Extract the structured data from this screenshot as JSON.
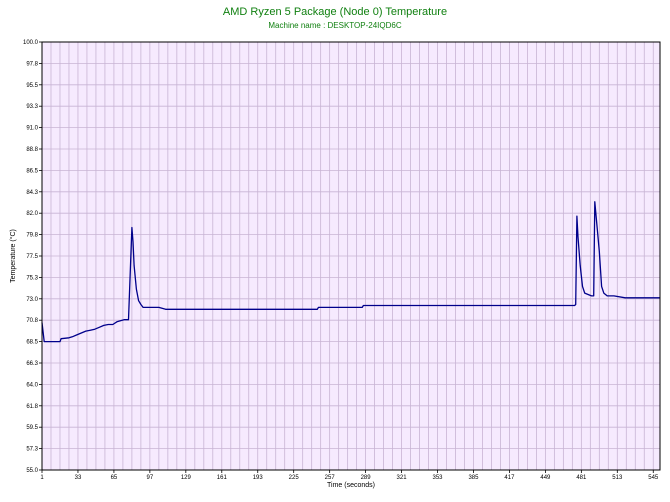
{
  "chart_data": {
    "type": "line",
    "title": "AMD Ryzen 5 Package (Node 0) Temperature",
    "subtitle": "Machine name : DESKTOP-24IQD6C",
    "xlabel": "Time (seconds)",
    "ylabel": "Temperature (°C)",
    "xlim": [
      1,
      551
    ],
    "ylim": [
      55.0,
      100.0
    ],
    "x_ticks": [
      1,
      33,
      65,
      97,
      129,
      161,
      193,
      225,
      257,
      289,
      321,
      353,
      385,
      417,
      449,
      481,
      513,
      545
    ],
    "y_ticks": [
      "55.0",
      "57.3",
      "59.5",
      "61.8",
      "64.0",
      "66.3",
      "68.5",
      "70.8",
      "73.0",
      "75.3",
      "77.5",
      "79.8",
      "82.0",
      "84.3",
      "86.5",
      "88.8",
      "91.0",
      "93.3",
      "95.5",
      "97.8",
      "100.0"
    ],
    "grid": true,
    "colors": {
      "background": "#f6eafe",
      "grid": "#c8b4d4",
      "line": "#00008b",
      "title": "#108010"
    },
    "series": [
      {
        "x": [
          1,
          2,
          3,
          5,
          17,
          18,
          25,
          28,
          32,
          36,
          40,
          44,
          48,
          52,
          56,
          60,
          64,
          68,
          74,
          78,
          81,
          82,
          83,
          85,
          87,
          89,
          91,
          95,
          105,
          111,
          200,
          246,
          247,
          286,
          287,
          400,
          470,
          475,
          476,
          477,
          478,
          480,
          482,
          484,
          490,
          491,
          492,
          493,
          494,
          497,
          499,
          501,
          504,
          510,
          520,
          551
        ],
        "y": [
          70.5,
          69.5,
          68.5,
          68.5,
          68.5,
          68.8,
          68.9,
          69.0,
          69.2,
          69.4,
          69.6,
          69.7,
          69.8,
          70.0,
          70.2,
          70.3,
          70.3,
          70.6,
          70.8,
          70.8,
          80.5,
          79.0,
          76.5,
          74.0,
          72.8,
          72.4,
          72.1,
          72.1,
          72.1,
          71.9,
          71.9,
          71.9,
          72.1,
          72.1,
          72.3,
          72.3,
          72.3,
          72.3,
          72.4,
          81.7,
          79.5,
          76.5,
          74.3,
          73.6,
          73.3,
          73.3,
          73.3,
          83.2,
          81.8,
          78.0,
          74.3,
          73.6,
          73.3,
          73.3,
          73.1,
          73.1
        ]
      }
    ]
  }
}
